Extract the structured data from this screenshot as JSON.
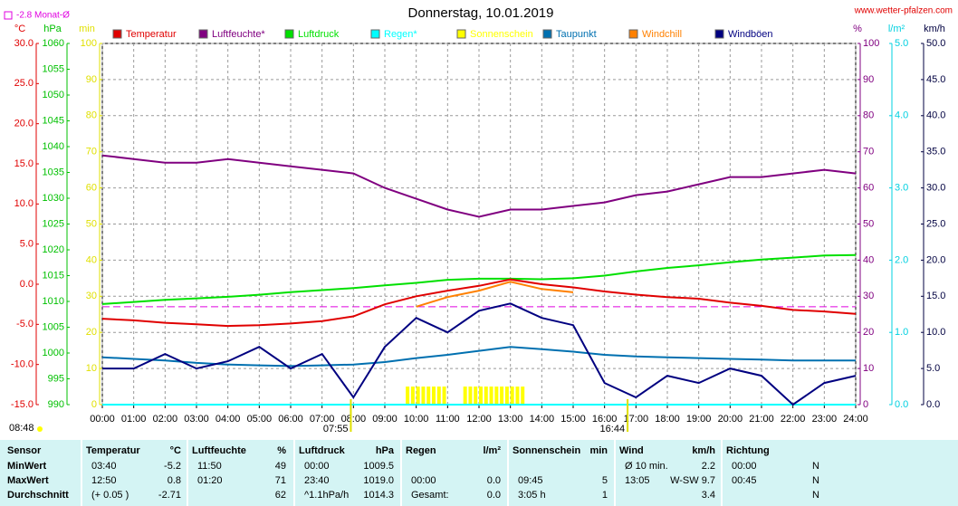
{
  "chart_data": {
    "type": "line",
    "title": "Donnerstag, 10.01.2019",
    "site": "www.wetter-pfalzen.com",
    "monthly_avg": {
      "label": "-2.8 Monat-Ø",
      "value": -2.8,
      "color": "#e000e0"
    },
    "sunrise_label": "08:48",
    "markers": [
      "07:55",
      "16:44"
    ],
    "x": [
      "00:00",
      "01:00",
      "02:00",
      "03:00",
      "04:00",
      "05:00",
      "06:00",
      "07:00",
      "08:00",
      "09:00",
      "10:00",
      "11:00",
      "12:00",
      "13:00",
      "14:00",
      "15:00",
      "16:00",
      "17:00",
      "18:00",
      "19:00",
      "20:00",
      "21:00",
      "22:00",
      "23:00",
      "24:00"
    ],
    "grid": true,
    "axes": {
      "temp": {
        "unit": "°C",
        "color": "#e00000",
        "lim": [
          -15,
          30
        ],
        "ticks": [
          {
            "value": -15,
            "label": "-15.0"
          },
          {
            "value": -10,
            "label": "-10.0"
          },
          {
            "value": -5,
            "label": "-5.0"
          },
          {
            "value": 0,
            "label": "0.0"
          },
          {
            "value": 5,
            "label": "5.0"
          },
          {
            "value": 10,
            "label": "10.0"
          },
          {
            "value": 15,
            "label": "15.0"
          },
          {
            "value": 20,
            "label": "20.0"
          },
          {
            "value": 25,
            "label": "25.0"
          },
          {
            "value": 30,
            "label": "30.0"
          }
        ]
      },
      "hpa": {
        "unit": "hPa",
        "color": "#00c000",
        "lim": [
          990,
          1060
        ],
        "ticks": [
          990,
          995,
          1000,
          1005,
          1010,
          1015,
          1020,
          1025,
          1030,
          1035,
          1040,
          1045,
          1050,
          1055,
          1060
        ]
      },
      "min": {
        "unit": "min",
        "color": "#e0e000",
        "lim": [
          0,
          100
        ],
        "ticks": [
          0,
          10,
          20,
          30,
          40,
          50,
          60,
          70,
          80,
          90,
          100
        ]
      },
      "pct": {
        "unit": "%",
        "color": "#800080",
        "lim": [
          0,
          100
        ],
        "ticks": [
          0,
          10,
          20,
          30,
          40,
          50,
          60,
          70,
          80,
          90,
          100
        ]
      },
      "rain": {
        "unit": "l/m²",
        "color": "#00d0e0",
        "lim": [
          0,
          5
        ],
        "ticks": [
          {
            "value": 0,
            "label": "0.0"
          },
          {
            "value": 1,
            "label": "1.0"
          },
          {
            "value": 2,
            "label": "2.0"
          },
          {
            "value": 3,
            "label": "3.0"
          },
          {
            "value": 4,
            "label": "4.0"
          },
          {
            "value": 5,
            "label": "5.0"
          }
        ]
      },
      "wind": {
        "unit": "km/h",
        "color": "#000040",
        "lim": [
          0,
          50
        ],
        "ticks": [
          {
            "value": 0,
            "label": "0.0"
          },
          {
            "value": 5,
            "label": "5.0"
          },
          {
            "value": 10,
            "label": "10.0"
          },
          {
            "value": 15,
            "label": "15.0"
          },
          {
            "value": 20,
            "label": "20.0"
          },
          {
            "value": 25,
            "label": "25.0"
          },
          {
            "value": 30,
            "label": "30.0"
          },
          {
            "value": 35,
            "label": "35.0"
          },
          {
            "value": 40,
            "label": "40.0"
          },
          {
            "value": 45,
            "label": "45.0"
          },
          {
            "value": 50,
            "label": "50.0"
          }
        ]
      }
    },
    "series": [
      {
        "name": "Temperatur",
        "color": "#e00000",
        "axis": "temp",
        "values": [
          -4.3,
          -4.5,
          -4.8,
          -5.0,
          -5.2,
          -5.1,
          -4.9,
          -4.6,
          -4.0,
          -2.5,
          -1.5,
          -0.8,
          -0.2,
          0.6,
          0.0,
          -0.4,
          -0.9,
          -1.3,
          -1.6,
          -1.8,
          -2.3,
          -2.7,
          -3.2,
          -3.4,
          -3.7
        ]
      },
      {
        "name": "Luftfeuchte*",
        "color": "#800080",
        "axis": "pct",
        "values": [
          69,
          68,
          67,
          67,
          68,
          67,
          66,
          65,
          64,
          60,
          57,
          54,
          52,
          54,
          54,
          55,
          56,
          58,
          59,
          61,
          63,
          63,
          64,
          65,
          64
        ]
      },
      {
        "name": "Luftdruck",
        "color": "#00e000",
        "axis": "hpa",
        "values": [
          1009.5,
          1009.9,
          1010.3,
          1010.6,
          1010.9,
          1011.3,
          1011.8,
          1012.2,
          1012.6,
          1013.1,
          1013.6,
          1014.2,
          1014.4,
          1014.4,
          1014.3,
          1014.5,
          1015.0,
          1015.8,
          1016.5,
          1017.0,
          1017.6,
          1018.1,
          1018.5,
          1018.9,
          1019.0
        ]
      },
      {
        "name": "Regen*",
        "color": "#00ffff",
        "axis": "rain",
        "values": [
          0,
          0,
          0,
          0,
          0,
          0,
          0,
          0,
          0,
          0,
          0,
          0,
          0,
          0,
          0,
          0,
          0,
          0,
          0,
          0,
          0,
          0,
          0,
          0,
          0
        ]
      },
      {
        "name": "Sonnenschein",
        "color": "#ffff00",
        "axis": "min",
        "kind": "bar",
        "x": [
          "09:40",
          "09:50",
          "10:00",
          "10:10",
          "10:20",
          "10:30",
          "10:40",
          "10:50",
          "11:30",
          "11:40",
          "11:50",
          "12:00",
          "12:10",
          "12:20",
          "12:30",
          "12:40",
          "12:50",
          "13:00",
          "13:10",
          "13:20"
        ],
        "values": [
          5,
          5,
          5,
          5,
          5,
          5,
          5,
          5,
          5,
          5,
          5,
          5,
          5,
          5,
          5,
          5,
          5,
          5,
          5,
          5
        ]
      },
      {
        "name": "Taupunkt",
        "color": "#0070b0",
        "axis": "temp",
        "values": [
          -9.1,
          -9.3,
          -9.5,
          -9.8,
          -10.0,
          -10.1,
          -10.2,
          -10.1,
          -10.0,
          -9.7,
          -9.2,
          -8.8,
          -8.3,
          -7.8,
          -8.1,
          -8.4,
          -8.8,
          -9.0,
          -9.1,
          -9.2,
          -9.3,
          -9.4,
          -9.5,
          -9.5,
          -9.5
        ]
      },
      {
        "name": "Windchill",
        "color": "#ff8000",
        "axis": "temp",
        "values": [
          null,
          null,
          null,
          null,
          null,
          null,
          null,
          null,
          null,
          null,
          -2.8,
          -1.6,
          -0.8,
          0.3,
          -0.6,
          -1.0,
          null,
          null,
          null,
          null,
          null,
          null,
          null,
          null,
          null
        ]
      },
      {
        "name": "Windböen",
        "color": "#000080",
        "axis": "wind",
        "values": [
          5.0,
          5.0,
          7.0,
          5.0,
          6.0,
          8.0,
          5.0,
          7.0,
          1.0,
          8.0,
          12.0,
          10.0,
          13.0,
          14.0,
          12.0,
          11.0,
          3.0,
          1.0,
          4.0,
          3.0,
          5.0,
          4.0,
          0.0,
          3.0,
          4.0
        ]
      }
    ]
  },
  "table": {
    "header": [
      [
        "Sensor"
      ],
      [
        "Temperatur",
        "°C"
      ],
      [
        "Luftfeuchte",
        "%"
      ],
      [
        "Luftdruck",
        "hPa"
      ],
      [
        "Regen",
        "l/m²"
      ],
      [
        "Sonnenschein",
        "min"
      ],
      [
        "Wind",
        "km/h"
      ],
      [
        "Richtung"
      ]
    ],
    "rows": [
      {
        "label": "MinWert",
        "cells": [
          [
            "03:40",
            "-5.2"
          ],
          [
            "11:50",
            "49"
          ],
          [
            "00:00",
            "1009.5"
          ],
          [
            null,
            null
          ],
          [
            null,
            null
          ],
          [
            "Ø 10 min.",
            "2.2"
          ],
          [
            "00:00",
            "N"
          ]
        ]
      },
      {
        "label": "MaxWert",
        "cells": [
          [
            "12:50",
            "0.8"
          ],
          [
            "01:20",
            "71"
          ],
          [
            "23:40",
            "1019.0"
          ],
          [
            "00:00",
            "0.0"
          ],
          [
            "09:45",
            "5"
          ],
          [
            "13:05",
            "W-SW 9.7"
          ],
          [
            "00:45",
            "N"
          ]
        ]
      },
      {
        "label": "Durchschnitt",
        "cells": [
          [
            "(+ 0.05 )",
            "-2.71"
          ],
          [
            null,
            "62"
          ],
          [
            "^1.1hPa/h",
            "1014.3"
          ],
          [
            "Gesamt:",
            "0.0"
          ],
          [
            "3:05 h",
            "1"
          ],
          [
            null,
            "3.4"
          ],
          [
            null,
            "N"
          ]
        ]
      }
    ]
  }
}
